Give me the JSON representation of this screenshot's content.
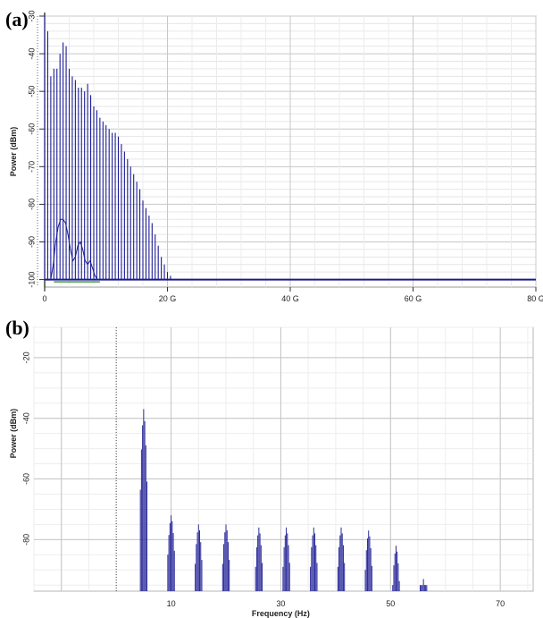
{
  "panel_a_label": "(a)",
  "panel_b_label": "(b)",
  "chart_data": [
    {
      "type": "line",
      "panel": "(a)",
      "ylabel": "Power (dBm)",
      "xlabel": "",
      "xlim": [
        0,
        80
      ],
      "ylim": [
        -102,
        -30
      ],
      "x_tick_labels": [
        "0",
        "20 G",
        "40 G",
        "60 G",
        "80 G"
      ],
      "x_tick_values": [
        0,
        20,
        40,
        60,
        80
      ],
      "y_tick_labels": [
        "-30",
        "-40",
        "-50",
        "-60",
        "-70",
        "-80",
        "-90",
        "-100"
      ],
      "y_tick_values": [
        -30,
        -40,
        -50,
        -60,
        -70,
        -80,
        -90,
        -100
      ],
      "noise_floor_dBm": -100,
      "spectral_lines": {
        "x_GHz": [
          0.0,
          0.5,
          1.0,
          1.5,
          2.0,
          2.5,
          3.0,
          3.5,
          4.0,
          4.5,
          5.0,
          5.5,
          6.0,
          6.5,
          7.0,
          7.5,
          8.0,
          8.5,
          9.0,
          9.5,
          10.0,
          10.5,
          11.0,
          11.5,
          12.0,
          12.5,
          13.0,
          13.5,
          14.0,
          14.5,
          15.0,
          15.5,
          16.0,
          16.5,
          17.0,
          17.5,
          18.0,
          18.5,
          19.0,
          19.5,
          20.0,
          20.5
        ],
        "power_dBm": [
          -30,
          -34,
          -46,
          -44,
          -44,
          -40,
          -37,
          -38,
          -44,
          -46,
          -47,
          -49,
          -49,
          -50,
          -48,
          -51,
          -54,
          -55,
          -57,
          -58,
          -59,
          -60,
          -61,
          -61,
          -62,
          -64,
          -66,
          -68,
          -70,
          -72,
          -74,
          -76,
          -79,
          -81,
          -83,
          -85,
          -88,
          -91,
          -94,
          -96,
          -98,
          -99
        ]
      },
      "inner_trace": {
        "x_GHz": [
          1.0,
          1.4,
          1.8,
          2.2,
          2.6,
          3.0,
          3.4,
          3.8,
          4.2,
          4.6,
          5.0,
          5.4,
          5.8,
          6.2,
          6.6,
          7.0,
          7.4,
          7.8,
          8.2,
          8.6,
          9.0
        ],
        "power_dBm": [
          -100,
          -96,
          -90,
          -86,
          -84,
          -84,
          -85,
          -88,
          -92,
          -95,
          -94,
          -91,
          -90,
          -92,
          -95,
          -96,
          -95,
          -97,
          -99,
          -100,
          -100
        ]
      }
    },
    {
      "type": "line",
      "panel": "(b)",
      "xlabel": "Frequency (Hz)",
      "ylabel": "Power (dBm)",
      "xlim": [
        -15,
        76
      ],
      "ylim": [
        -97,
        -10
      ],
      "x_tick_labels": [
        "10",
        "30",
        "50",
        "70"
      ],
      "x_tick_values": [
        10,
        30,
        50,
        70
      ],
      "y_tick_labels": [
        "-20",
        "-40",
        "-60",
        "-80"
      ],
      "y_tick_values": [
        -20,
        -40,
        -60,
        -80
      ],
      "clusters": [
        {
          "center": 5,
          "peak_dBm": -37
        },
        {
          "center": 10,
          "peak_dBm": -72
        },
        {
          "center": 15,
          "peak_dBm": -75
        },
        {
          "center": 20,
          "peak_dBm": -75
        },
        {
          "center": 26,
          "peak_dBm": -76
        },
        {
          "center": 31,
          "peak_dBm": -76
        },
        {
          "center": 36,
          "peak_dBm": -76
        },
        {
          "center": 41,
          "peak_dBm": -76
        },
        {
          "center": 46,
          "peak_dBm": -77
        },
        {
          "center": 51,
          "peak_dBm": -82
        },
        {
          "center": 56,
          "peak_dBm": -93
        }
      ]
    }
  ]
}
